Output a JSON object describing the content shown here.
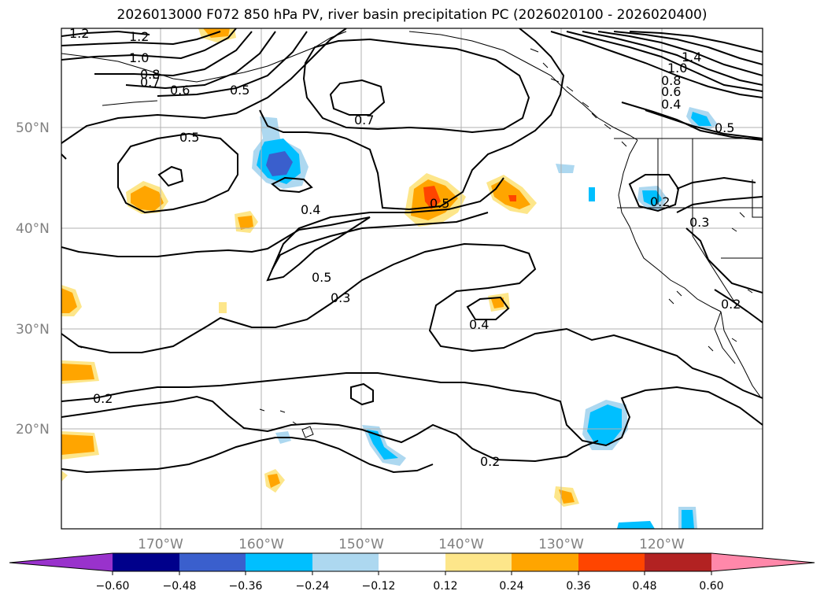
{
  "title": "2026013000 F072 850 hPa PV, river basin precipitation PC (2026020100 - 2026020400)",
  "lat_labels": [
    "50°N",
    "40°N",
    "30°N",
    "20°N"
  ],
  "lon_labels": [
    "170°W",
    "160°W",
    "150°W",
    "140°W",
    "130°W",
    "120°W"
  ],
  "colorbar": {
    "ticks": [
      "−0.60",
      "−0.48",
      "−0.36",
      "−0.24",
      "−0.12",
      "0.12",
      "0.24",
      "0.36",
      "0.48",
      "0.60"
    ],
    "colors": [
      "#9932cc",
      "#00008b",
      "#3a5fcd",
      "#00bfff",
      "#add8f0",
      "#ffffff",
      "#fde68a",
      "#ffa500",
      "#ff4500",
      "#b22222",
      "#ff88aa"
    ]
  },
  "contour_labels": [
    "1.2",
    "1.2",
    "1.0",
    "0.8",
    "0.7",
    "0.6",
    "0.5",
    "0.5",
    "0.7",
    "0.4",
    "0.5",
    "0.5",
    "0.3",
    "0.4",
    "0.2",
    "0.2",
    "1.4",
    "1.0",
    "0.8",
    "0.6",
    "0.4",
    "0.5",
    "0.2",
    "0.3",
    "0.2"
  ]
}
